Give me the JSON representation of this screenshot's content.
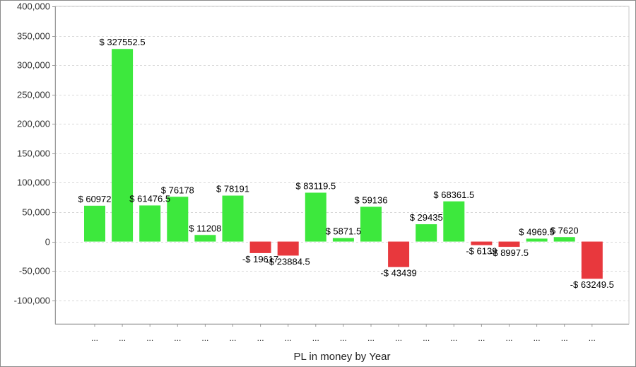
{
  "chart_data": {
    "type": "bar",
    "xlabel": "PL in money by Year",
    "ylabel": "",
    "ylim": [
      -140000,
      400000
    ],
    "yticks": [
      400000,
      350000,
      300000,
      250000,
      200000,
      150000,
      100000,
      50000,
      0,
      -50000,
      -100000
    ],
    "ytick_labels": [
      "400,000",
      "350,000",
      "300,000",
      "250,000",
      "200,000",
      "150,000",
      "100,000",
      "50,000",
      "0",
      "-50,000",
      "-100,000"
    ],
    "grid": true,
    "categories": [
      "...",
      "...",
      "...",
      "...",
      "...",
      "...",
      "...",
      "...",
      "...",
      "...",
      "...",
      "...",
      "...",
      "...",
      "...",
      "...",
      "...",
      "...",
      "..."
    ],
    "values": [
      60972,
      327552.5,
      61476.5,
      76178,
      11208,
      78191,
      -19617,
      -23884.5,
      83119.5,
      5871.5,
      59136,
      -43439,
      29435,
      68361.5,
      -6139,
      -8997.5,
      4969.5,
      7620,
      -63249.5
    ],
    "data_labels": [
      "$ 60972",
      "$ 327552.5",
      "$ 61476.5",
      "$ 76178",
      "$ 11208",
      "$ 78191",
      "-$ 19617",
      "-$ 23884.5",
      "$ 83119.5",
      "$ 5871.5",
      "$ 59136",
      "-$ 43439",
      "$ 29435",
      "$ 68361.5",
      "-$ 6139",
      "-$ 8997.5",
      "$ 4969.5",
      "$ 7620",
      "-$ 63249.5"
    ],
    "colors": {
      "positive": "#3de83d",
      "negative": "#e8383d",
      "grid": "#d8d8d8",
      "axis": "#999999"
    }
  }
}
